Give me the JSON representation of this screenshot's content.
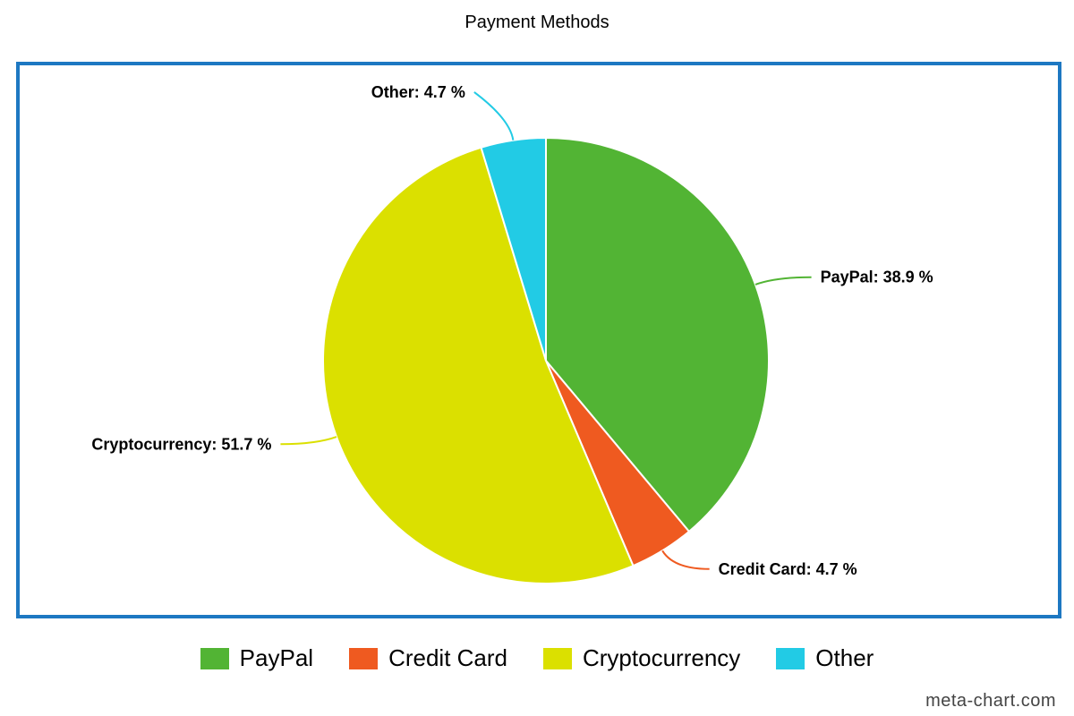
{
  "chart_data": {
    "type": "pie",
    "title": "Payment Methods",
    "slices": [
      {
        "name": "PayPal",
        "value": 38.9,
        "label": "PayPal: 38.9 %",
        "color": "#52b434"
      },
      {
        "name": "Credit Card",
        "value": 4.7,
        "label": "Credit Card: 4.7 %",
        "color": "#ef5a20"
      },
      {
        "name": "Cryptocurrency",
        "value": 51.7,
        "label": "Cryptocurrency: 51.7 %",
        "color": "#dbe000"
      },
      {
        "name": "Other",
        "value": 4.7,
        "label": "Other: 4.7 %",
        "color": "#22cbe5"
      }
    ],
    "legend_position": "bottom",
    "frame_color": "#1d78c2"
  },
  "footer": {
    "credit": "meta-chart.com"
  }
}
